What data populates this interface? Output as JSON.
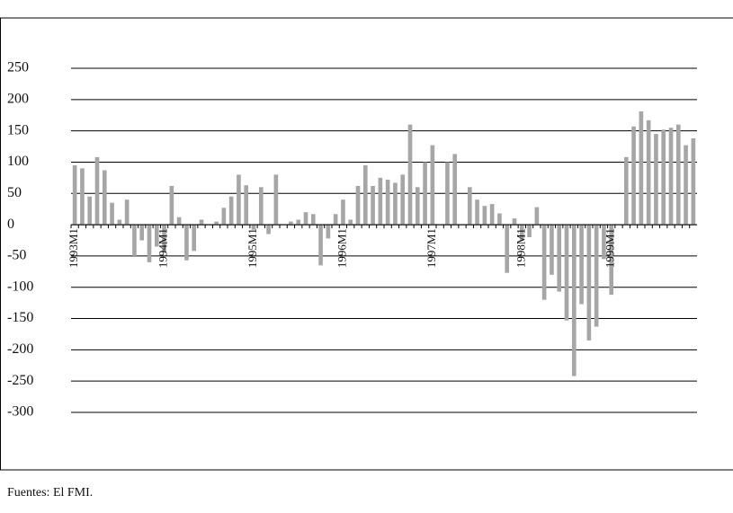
{
  "chart_data": {
    "type": "bar",
    "categories": [
      "1993M1",
      null,
      null,
      null,
      null,
      null,
      null,
      null,
      null,
      null,
      null,
      null,
      "1994M1",
      null,
      null,
      null,
      null,
      null,
      null,
      null,
      null,
      null,
      null,
      null,
      "1995M1",
      null,
      null,
      null,
      null,
      null,
      null,
      null,
      null,
      null,
      null,
      null,
      "1996M1",
      null,
      null,
      null,
      null,
      null,
      null,
      null,
      null,
      null,
      null,
      null,
      "1997M1",
      null,
      null,
      null,
      null,
      null,
      null,
      null,
      null,
      null,
      null,
      null,
      "1998M1",
      null,
      null,
      null,
      null,
      null,
      null,
      null,
      null,
      null,
      null,
      null,
      "1999M1",
      null,
      null,
      null,
      null,
      null,
      null,
      null,
      null,
      null,
      null,
      null
    ],
    "values": [
      95,
      90,
      45,
      108,
      87,
      35,
      8,
      40,
      -50,
      -25,
      -60,
      -35,
      -45,
      62,
      12,
      -57,
      -42,
      8,
      0,
      5,
      27,
      45,
      80,
      63,
      -8,
      60,
      -15,
      80,
      0,
      5,
      8,
      20,
      17,
      -65,
      -22,
      17,
      40,
      8,
      62,
      95,
      62,
      75,
      72,
      67,
      80,
      160,
      60,
      100,
      127,
      0,
      100,
      113,
      0,
      60,
      40,
      30,
      33,
      18,
      -77,
      10,
      -25,
      -20,
      28,
      -120,
      -80,
      -107,
      -153,
      -242,
      -127,
      -185,
      -163,
      -55,
      -112,
      0,
      108,
      157,
      181,
      167,
      145,
      152,
      155,
      160,
      127,
      138
    ],
    "color": "#a6a6a6",
    "ylim": [
      -300,
      250
    ],
    "yticks": [
      -300,
      -250,
      -200,
      -150,
      -100,
      -50,
      0,
      50,
      100,
      150,
      200,
      250
    ],
    "grid": true,
    "source": "Fuentes: El FMI."
  }
}
